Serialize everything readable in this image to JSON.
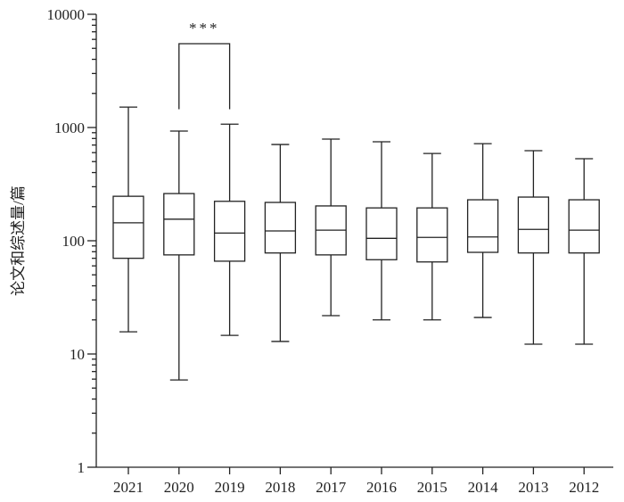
{
  "chart_data": {
    "type": "boxplot",
    "title": "",
    "xlabel": "",
    "ylabel": "论文和综述量/篇",
    "yscale": "log",
    "ylim": [
      1,
      10000
    ],
    "yticks": [
      1,
      10,
      100,
      1000,
      10000
    ],
    "ytick_labels": [
      "1",
      "10",
      "100",
      "1000",
      "10000"
    ],
    "grid": false,
    "color": "#222222",
    "categories": [
      "2021",
      "2020",
      "2019",
      "2018",
      "2017",
      "2016",
      "2015",
      "2014",
      "2013",
      "2012"
    ],
    "boxes": [
      {
        "min": 15.7,
        "q1": 70,
        "median": 144,
        "q3": 247,
        "max": 1514
      },
      {
        "min": 5.9,
        "q1": 75,
        "median": 155,
        "q3": 261,
        "max": 930
      },
      {
        "min": 14.6,
        "q1": 66,
        "median": 117,
        "q3": 223,
        "max": 1070
      },
      {
        "min": 12.9,
        "q1": 78,
        "median": 122,
        "q3": 218,
        "max": 708
      },
      {
        "min": 21.8,
        "q1": 75,
        "median": 124,
        "q3": 203,
        "max": 790
      },
      {
        "min": 20,
        "q1": 68,
        "median": 105,
        "q3": 195,
        "max": 748
      },
      {
        "min": 20,
        "q1": 65,
        "median": 107,
        "q3": 195,
        "max": 590
      },
      {
        "min": 21,
        "q1": 79,
        "median": 108,
        "q3": 230,
        "max": 720
      },
      {
        "min": 12.2,
        "q1": 78,
        "median": 126,
        "q3": 243,
        "max": 624
      },
      {
        "min": 12.2,
        "q1": 78,
        "median": 124,
        "q3": 230,
        "max": 530
      }
    ],
    "annotations": [
      {
        "type": "significance-bracket",
        "from": "2020",
        "to": "2019",
        "label": "***",
        "top": 5500,
        "leg_bottom": 1450
      }
    ]
  }
}
